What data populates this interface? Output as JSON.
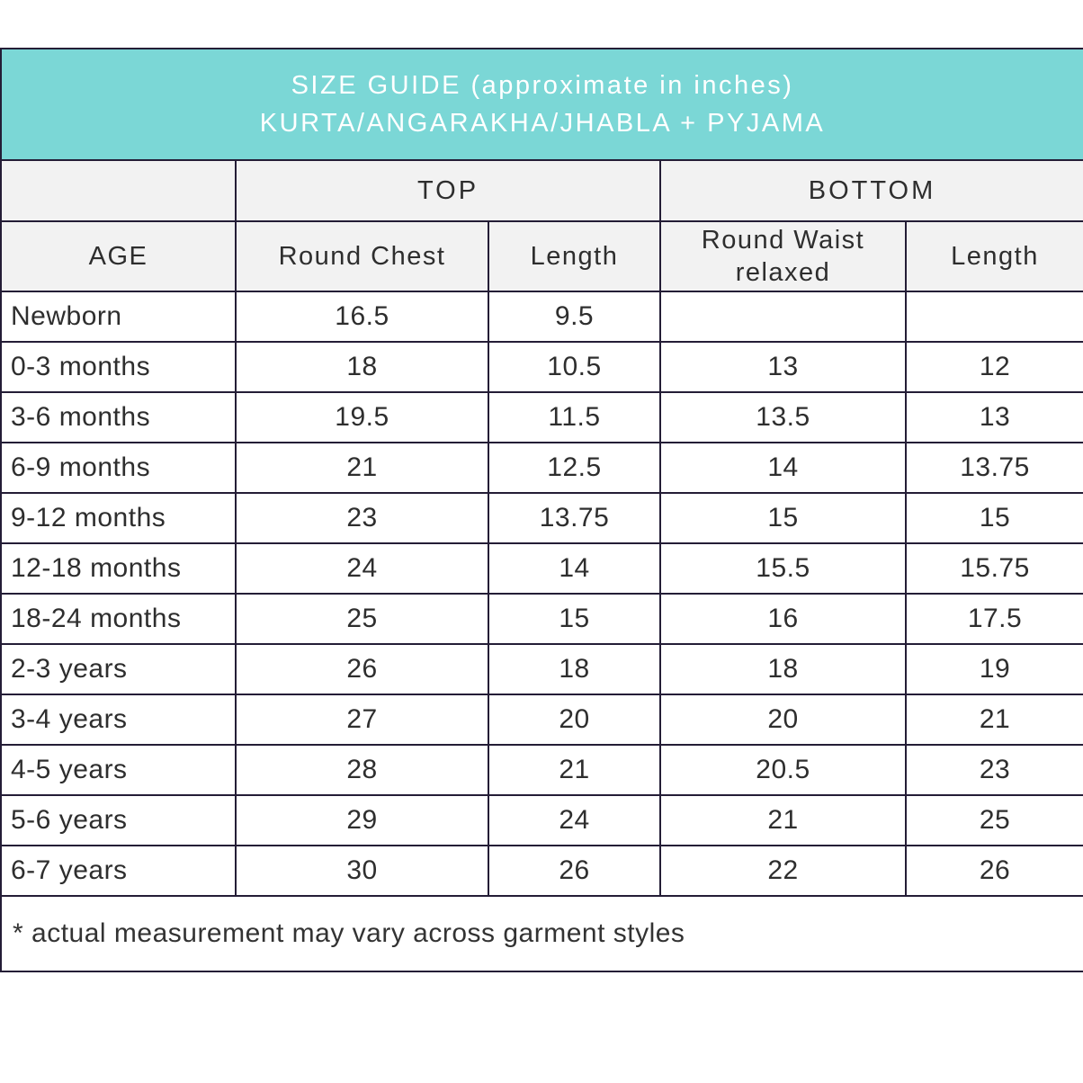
{
  "banner": {
    "title_line1": "SIZE GUIDE (approximate in inches)",
    "title_line2": "KURTA/ANGARAKHA/JHABLA + PYJAMA"
  },
  "table": {
    "group_headers": {
      "top": "TOP",
      "bottom": "BOTTOM"
    },
    "columns": {
      "age": "AGE",
      "round_chest": "Round Chest",
      "top_length": "Length",
      "round_waist": "Round Waist relaxed",
      "bottom_length": "Length"
    },
    "rows": [
      {
        "age": "Newborn",
        "values": [
          "16.5",
          "9.5",
          "",
          ""
        ]
      },
      {
        "age": "0-3 months",
        "values": [
          "18",
          "10.5",
          "13",
          "12"
        ]
      },
      {
        "age": "3-6 months",
        "values": [
          "19.5",
          "11.5",
          "13.5",
          "13"
        ]
      },
      {
        "age": "6-9 months",
        "values": [
          "21",
          "12.5",
          "14",
          "13.75"
        ]
      },
      {
        "age": "9-12 months",
        "values": [
          "23",
          "13.75",
          "15",
          "15"
        ]
      },
      {
        "age": "12-18 months",
        "values": [
          "24",
          "14",
          "15.5",
          "15.75"
        ]
      },
      {
        "age": "18-24 months",
        "values": [
          "25",
          "15",
          "16",
          "17.5"
        ]
      },
      {
        "age": "2-3 years",
        "values": [
          "26",
          "18",
          "18",
          "19"
        ]
      },
      {
        "age": "3-4 years",
        "values": [
          "27",
          "20",
          "20",
          "21"
        ]
      },
      {
        "age": "4-5 years",
        "values": [
          "28",
          "21",
          "20.5",
          "23"
        ]
      },
      {
        "age": "5-6 years",
        "values": [
          "29",
          "24",
          "21",
          "25"
        ]
      },
      {
        "age": "6-7 years",
        "values": [
          "30",
          "26",
          "22",
          "26"
        ]
      }
    ],
    "footnote": "* actual measurement may vary across garment styles"
  },
  "colors": {
    "banner_bg": "#7bd7d6",
    "banner_text": "#ffffff",
    "header_bg": "#f2f2f2",
    "border": "#241d36",
    "text": "#2e2e2e"
  }
}
